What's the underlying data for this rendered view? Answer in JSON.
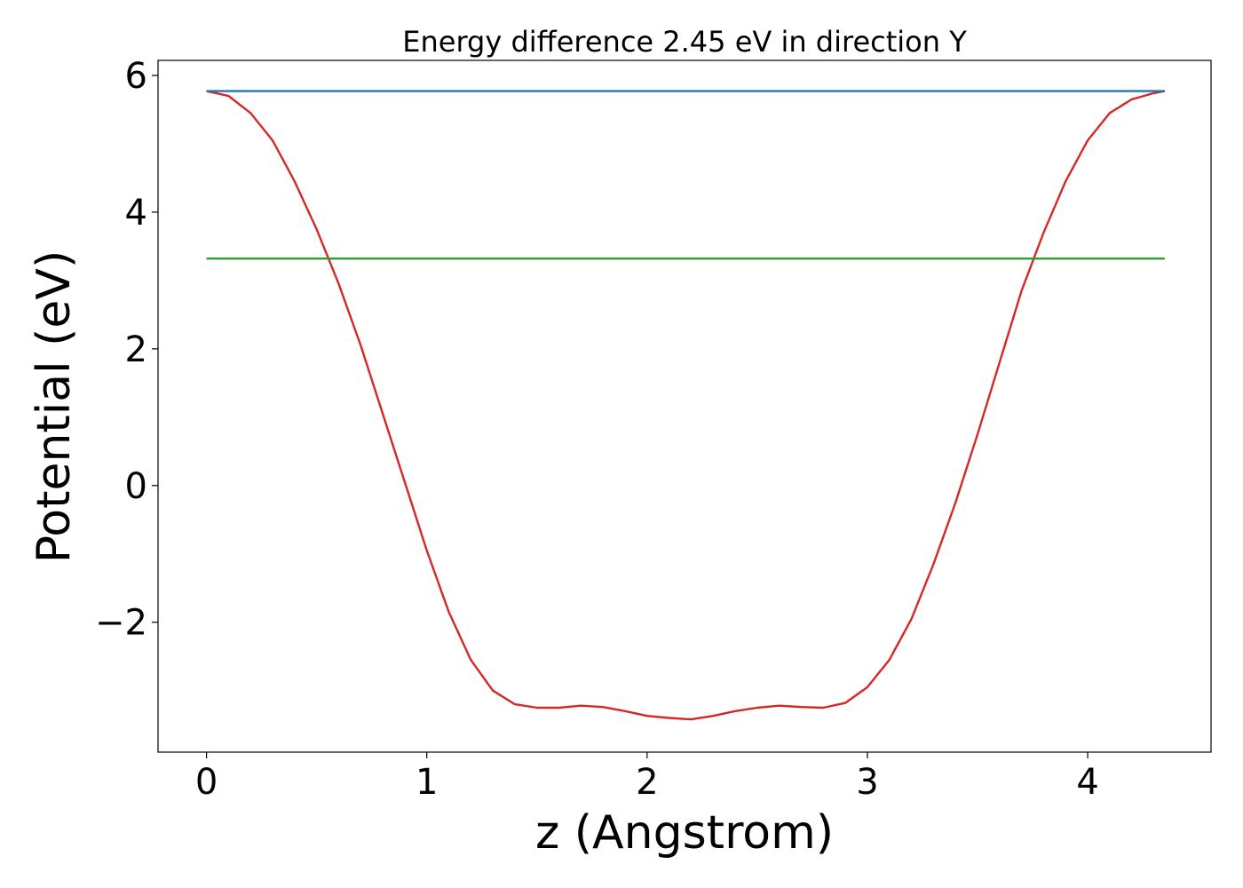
{
  "chart_data": {
    "type": "line",
    "title": "Energy difference 2.45 eV in direction Y",
    "xlabel": "z (Angstrom)",
    "ylabel": "Potential (eV)",
    "xlim": [
      -0.22,
      4.56
    ],
    "ylim": [
      -3.9,
      6.22
    ],
    "xticks": [
      {
        "value": 0,
        "label": "0"
      },
      {
        "value": 1,
        "label": "1"
      },
      {
        "value": 2,
        "label": "2"
      },
      {
        "value": 3,
        "label": "3"
      },
      {
        "value": 4,
        "label": "4"
      }
    ],
    "yticks": [
      {
        "value": -2,
        "label": "−2"
      },
      {
        "value": 0,
        "label": "0"
      },
      {
        "value": 2,
        "label": "2"
      },
      {
        "value": 4,
        "label": "4"
      },
      {
        "value": 6,
        "label": "6"
      }
    ],
    "grid": false,
    "series": [
      {
        "color": "#d62728",
        "x": [
          0,
          0.1,
          0.2,
          0.3,
          0.4,
          0.5,
          0.6,
          0.7,
          0.8,
          0.9,
          1.0,
          1.1,
          1.2,
          1.3,
          1.4,
          1.5,
          1.6,
          1.7,
          1.8,
          1.9,
          2.0,
          2.1,
          2.2,
          2.3,
          2.4,
          2.5,
          2.6,
          2.7,
          2.8,
          2.9,
          3.0,
          3.1,
          3.2,
          3.3,
          3.4,
          3.5,
          3.6,
          3.7,
          3.8,
          3.9,
          4.0,
          4.1,
          4.2,
          4.3,
          4.35
        ],
        "y": [
          5.77,
          5.7,
          5.45,
          5.05,
          4.45,
          3.75,
          2.95,
          2.05,
          1.05,
          0.05,
          -0.95,
          -1.85,
          -2.55,
          -3.0,
          -3.2,
          -3.25,
          -3.25,
          -3.22,
          -3.24,
          -3.3,
          -3.37,
          -3.4,
          -3.42,
          -3.37,
          -3.3,
          -3.25,
          -3.22,
          -3.24,
          -3.25,
          -3.18,
          -2.95,
          -2.55,
          -1.95,
          -1.15,
          -0.25,
          0.75,
          1.8,
          2.85,
          3.7,
          4.45,
          5.05,
          5.45,
          5.65,
          5.74,
          5.77
        ]
      },
      {
        "color": "#1f77b4",
        "x": [
          0,
          4.35
        ],
        "y": [
          5.77,
          5.77
        ]
      },
      {
        "color": "#2ca02c",
        "x": [
          0,
          4.35
        ],
        "y": [
          3.32,
          3.32
        ]
      }
    ]
  }
}
